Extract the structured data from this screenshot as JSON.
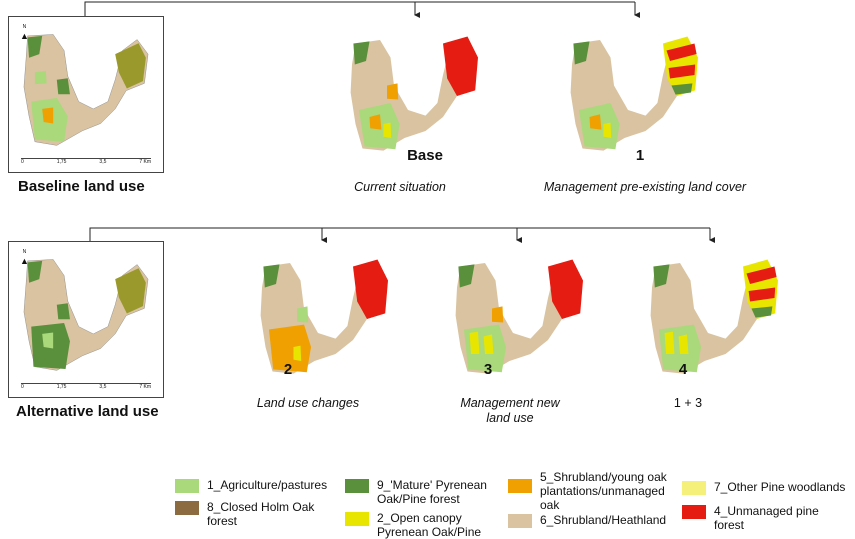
{
  "panels": {
    "baseline": {
      "title": "Baseline land use"
    },
    "alternative": {
      "title": "Alternative land use"
    }
  },
  "scenarios": {
    "base": {
      "code": "Base",
      "caption": "Current situation"
    },
    "s1": {
      "code": "1",
      "caption": "Management pre-existing land cover"
    },
    "s2": {
      "code": "2",
      "caption": "Land use changes"
    },
    "s3": {
      "code": "3",
      "caption": "Management new land use"
    },
    "s4": {
      "code": "4",
      "caption": "1 + 3"
    }
  },
  "scalebar": {
    "ticks": [
      "0",
      "1,75",
      "3,5",
      "7 Km"
    ]
  },
  "north_label": "N",
  "legend": [
    {
      "label": "1_Agriculture/pastures",
      "color": "#a9d97a"
    },
    {
      "label": "8_Closed Holm Oak forest",
      "color": "#8b6b3f"
    },
    {
      "label": "9_'Mature' Pyrenean Oak/Pine forest",
      "color": "#5a8f3c"
    },
    {
      "label": "2_Open canopy Pyrenean Oak/Pine",
      "color": "#e8e600"
    },
    {
      "label": "5_Shrubland/young oak plantations/unmanaged oak",
      "color": "#f0a000"
    },
    {
      "label": "6_Shrubland/Heathland",
      "color": "#d9c3a0"
    },
    {
      "label": "7_Other Pine woodlands",
      "color": "#f5f07a"
    },
    {
      "label": "4_Unmanaged pine forest",
      "color": "#e51c12"
    }
  ]
}
